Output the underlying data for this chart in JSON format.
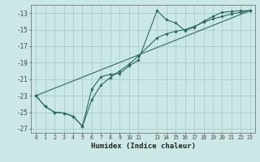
{
  "xlabel": "Humidex (Indice chaleur)",
  "bg_color": "#cce8e6",
  "grid_color": "#aad0ce",
  "line_color": "#2a6b65",
  "xlim": [
    -0.5,
    23.5
  ],
  "ylim": [
    -27.5,
    -12.0
  ],
  "yticks": [
    -27,
    -25,
    -23,
    -21,
    -19,
    -17,
    -15,
    -13
  ],
  "xtick_positions": [
    0,
    1,
    2,
    3,
    4,
    5,
    6,
    7,
    8,
    9,
    10,
    11,
    13,
    14,
    15,
    16,
    17,
    18,
    19,
    20,
    21,
    22,
    23
  ],
  "xtick_labels": [
    "0",
    "1",
    "2",
    "3",
    "4",
    "5",
    "6",
    "7",
    "8",
    "9",
    "10",
    "11",
    "13",
    "14",
    "15",
    "16",
    "17",
    "18",
    "19",
    "20",
    "21",
    "22",
    "23"
  ],
  "series1_x": [
    0,
    1,
    2,
    3,
    4,
    5,
    6,
    7,
    8,
    9,
    10,
    11,
    13,
    14,
    15,
    16,
    17,
    18,
    19,
    20,
    21,
    22,
    23
  ],
  "series1_y": [
    -23.0,
    -24.3,
    -25.0,
    -25.1,
    -25.5,
    -26.7,
    -22.2,
    -20.7,
    -20.4,
    -20.3,
    -19.4,
    -18.7,
    -12.7,
    -13.8,
    -14.2,
    -15.1,
    -14.7,
    -14.0,
    -13.4,
    -12.9,
    -12.8,
    -12.7,
    -12.7
  ],
  "series2_x": [
    0,
    1,
    2,
    3,
    4,
    5,
    6,
    7,
    8,
    9,
    10,
    11,
    13,
    14,
    15,
    16,
    17,
    18,
    19,
    20,
    21,
    22,
    23
  ],
  "series2_y": [
    -23.0,
    -24.3,
    -25.0,
    -25.1,
    -25.5,
    -26.7,
    -23.5,
    -21.7,
    -20.8,
    -20.0,
    -19.2,
    -18.2,
    -16.0,
    -15.5,
    -15.2,
    -15.0,
    -14.6,
    -14.1,
    -13.7,
    -13.4,
    -13.1,
    -12.9,
    -12.7
  ],
  "series3_x": [
    0,
    23
  ],
  "series3_y": [
    -23.0,
    -12.7
  ]
}
